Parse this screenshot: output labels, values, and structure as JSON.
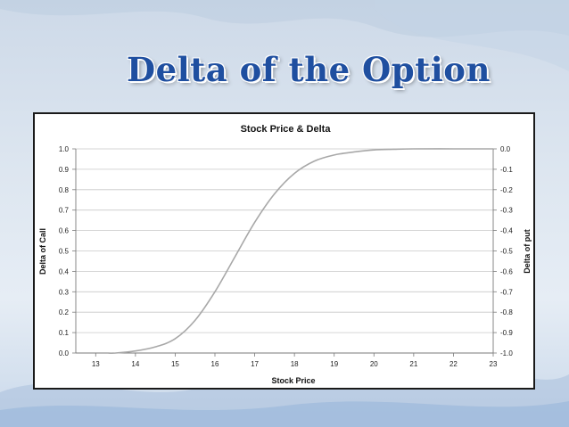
{
  "slide": {
    "title": "Delta of the Option"
  },
  "chart_data": {
    "type": "line",
    "title": "Stock Price & Delta",
    "xlabel": "Stock Price",
    "ylabel": "Delta of Call",
    "ylabel_right": "Delta of put",
    "xlim": [
      12.5,
      23
    ],
    "ylim": [
      0,
      1
    ],
    "ylim_right": [
      -1,
      0
    ],
    "x_ticks": [
      "13",
      "14",
      "15",
      "16",
      "17",
      "18",
      "19",
      "20",
      "21",
      "22",
      "23"
    ],
    "y_ticks": [
      "0.0",
      "0.1",
      "0.2",
      "0.3",
      "0.4",
      "0.5",
      "0.6",
      "0.7",
      "0.8",
      "0.9",
      "1.0"
    ],
    "y_ticks_right": [
      "-1.0",
      "-0.9",
      "-0.8",
      "-0.7",
      "-0.6",
      "-0.5",
      "-0.4",
      "-0.3",
      "-0.2",
      "-0.1",
      "0.0"
    ],
    "grid": true,
    "series": [
      {
        "color": "#a8a8a8",
        "x": [
          13.3,
          13.5,
          14,
          14.5,
          15,
          15.5,
          16,
          16.5,
          17,
          17.5,
          18,
          18.5,
          19,
          19.5,
          20,
          20.5,
          21,
          22,
          23
        ],
        "y": [
          0.0,
          0.0,
          0.01,
          0.03,
          0.07,
          0.16,
          0.3,
          0.47,
          0.64,
          0.78,
          0.88,
          0.94,
          0.97,
          0.985,
          0.995,
          0.998,
          1.0,
          1.0,
          1.0
        ]
      }
    ]
  },
  "colors": {
    "title_blue": "#1f4fa0",
    "grid": "#c8c8c8",
    "axis": "#7a7a7a"
  }
}
